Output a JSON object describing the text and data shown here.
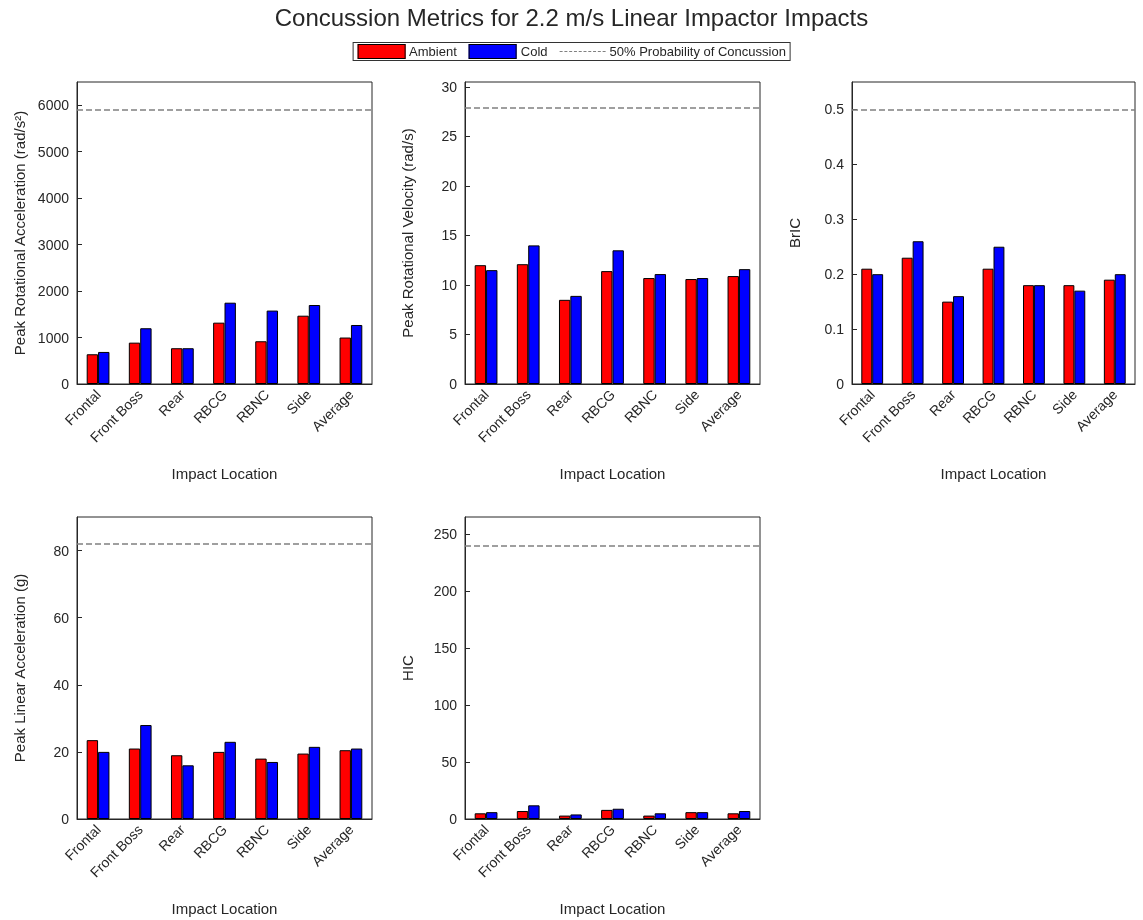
{
  "chart_data": [
    {
      "type": "bar",
      "title": "Concussion Metrics for 2.2 m/s Linear Impactor Impacts",
      "legend": "top",
      "xlabel": "Impact Location",
      "ylabel": "Peak Rotational Acceleration (rad/s²)",
      "categories": [
        "Frontal",
        "Front Boss",
        "Rear",
        "RBCG",
        "RBNC",
        "Side",
        "Average"
      ],
      "series": [
        {
          "name": "Ambient",
          "color": "#ff0000",
          "values": [
            640,
            890,
            770,
            1320,
            920,
            1470,
            1000
          ]
        },
        {
          "name": "Cold",
          "color": "#0000ff",
          "values": [
            690,
            1200,
            770,
            1750,
            1580,
            1700,
            1270
          ]
        }
      ],
      "ylim": [
        0,
        6500
      ],
      "yticks": [
        0,
        1000,
        2000,
        3000,
        4000,
        5000,
        6000
      ],
      "ref_lines": [
        {
          "axis": "y",
          "value": 5900,
          "label": "50% Probability of Concussion",
          "color": "#808080",
          "line_style": "dashed"
        }
      ]
    },
    {
      "type": "bar",
      "xlabel": "Impact Location",
      "ylabel": "Peak Rotational Velocity (rad/s)",
      "categories": [
        "Frontal",
        "Front Boss",
        "Rear",
        "RBCG",
        "RBNC",
        "Side",
        "Average"
      ],
      "series": [
        {
          "color": "#ff0000",
          "values": [
            12.0,
            12.1,
            8.5,
            11.4,
            10.7,
            10.6,
            10.9
          ]
        },
        {
          "color": "#0000ff",
          "values": [
            11.5,
            14.0,
            8.9,
            13.5,
            11.1,
            10.7,
            11.6
          ]
        }
      ],
      "ylim": [
        0,
        30.5
      ],
      "yticks": [
        0,
        5,
        10,
        15,
        20,
        25,
        30
      ],
      "ref_lines": [
        {
          "axis": "y",
          "value": 27.9,
          "color": "#808080",
          "line_style": "dashed"
        }
      ]
    },
    {
      "type": "bar",
      "xlabel": "Impact Location",
      "ylabel": "BrIC",
      "categories": [
        "Frontal",
        "Front Boss",
        "Rear",
        "RBCG",
        "RBNC",
        "Side",
        "Average"
      ],
      "series": [
        {
          "color": "#ff0000",
          "values": [
            0.21,
            0.23,
            0.15,
            0.21,
            0.18,
            0.18,
            0.19
          ]
        },
        {
          "color": "#0000ff",
          "values": [
            0.2,
            0.26,
            0.16,
            0.25,
            0.18,
            0.17,
            0.2
          ]
        }
      ],
      "ylim": [
        0,
        0.55
      ],
      "yticks": [
        0,
        0.1,
        0.2,
        0.3,
        0.4,
        0.5
      ],
      "ref_lines": [
        {
          "axis": "y",
          "value": 0.5,
          "color": "#808080",
          "line_style": "dashed"
        }
      ]
    },
    {
      "type": "bar",
      "xlabel": "Impact Location",
      "ylabel": "Peak Linear Acceleration (g)",
      "categories": [
        "Frontal",
        "Front Boss",
        "Rear",
        "RBCG",
        "RBNC",
        "Side",
        "Average"
      ],
      "series": [
        {
          "color": "#ff0000",
          "values": [
            23.5,
            21,
            19,
            20,
            18,
            19.5,
            20.5
          ]
        },
        {
          "color": "#0000ff",
          "values": [
            20,
            28,
            16,
            23,
            17,
            21.5,
            21
          ]
        }
      ],
      "ylim": [
        0,
        90
      ],
      "yticks": [
        0,
        20,
        40,
        60,
        80
      ],
      "ref_lines": [
        {
          "axis": "y",
          "value": 82,
          "color": "#808080",
          "line_style": "dashed"
        }
      ]
    },
    {
      "type": "bar",
      "xlabel": "Impact Location",
      "ylabel": "HIC",
      "categories": [
        "Frontal",
        "Front Boss",
        "Rear",
        "RBCG",
        "RBNC",
        "Side",
        "Average"
      ],
      "series": [
        {
          "color": "#ff0000",
          "values": [
            5,
            7,
            3,
            8,
            3,
            6,
            5
          ]
        },
        {
          "color": "#0000ff",
          "values": [
            6,
            12,
            4,
            9,
            5,
            6,
            7
          ]
        }
      ],
      "ylim": [
        0,
        265
      ],
      "yticks": [
        0,
        50,
        100,
        150,
        200,
        250
      ],
      "ref_lines": [
        {
          "axis": "y",
          "value": 240,
          "color": "#808080",
          "line_style": "dashed"
        }
      ]
    }
  ]
}
